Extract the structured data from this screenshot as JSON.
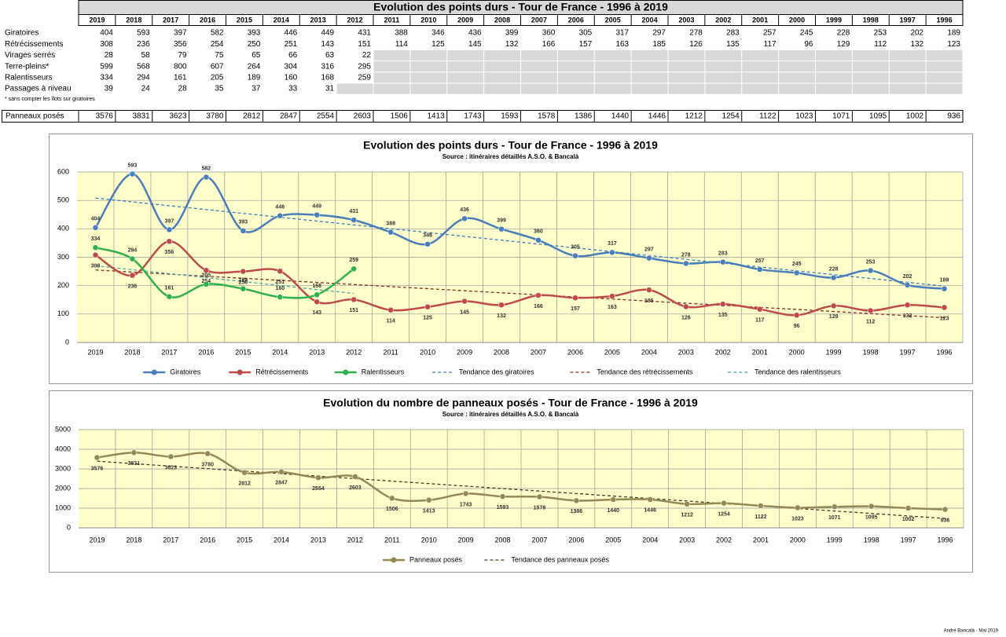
{
  "table": {
    "title": "Evolution des points durs - Tour de France - 1996 à 2019",
    "years": [
      "2019",
      "2018",
      "2017",
      "2016",
      "2015",
      "2014",
      "2013",
      "2012",
      "2011",
      "2010",
      "2009",
      "2008",
      "2007",
      "2006",
      "2005",
      "2004",
      "2003",
      "2002",
      "2001",
      "2000",
      "1999",
      "1998",
      "1997",
      "1996"
    ],
    "rows": [
      {
        "label": "Giratoires",
        "values": [
          404,
          593,
          397,
          582,
          393,
          446,
          449,
          431,
          388,
          346,
          436,
          399,
          360,
          305,
          317,
          297,
          278,
          283,
          257,
          245,
          228,
          253,
          202,
          189
        ]
      },
      {
        "label": "Rétrécissements",
        "values": [
          308,
          236,
          356,
          254,
          250,
          251,
          143,
          151,
          114,
          125,
          145,
          132,
          166,
          157,
          163,
          185,
          126,
          135,
          117,
          96,
          129,
          112,
          132,
          123
        ]
      },
      {
        "label": "Virages serrés",
        "values": [
          28,
          58,
          79,
          75,
          65,
          66,
          63,
          22,
          null,
          null,
          null,
          null,
          null,
          null,
          null,
          null,
          null,
          null,
          null,
          null,
          null,
          null,
          null,
          null
        ]
      },
      {
        "label": "Terre-pleins*",
        "values": [
          599,
          568,
          800,
          607,
          264,
          304,
          316,
          295,
          null,
          null,
          null,
          null,
          null,
          null,
          null,
          null,
          null,
          null,
          null,
          null,
          null,
          null,
          null,
          null
        ]
      },
      {
        "label": "Ralentisseurs",
        "values": [
          334,
          294,
          161,
          205,
          189,
          160,
          168,
          259,
          null,
          null,
          null,
          null,
          null,
          null,
          null,
          null,
          null,
          null,
          null,
          null,
          null,
          null,
          null,
          null
        ]
      },
      {
        "label": "Passages à niveau",
        "values": [
          39,
          24,
          28,
          35,
          37,
          33,
          31,
          null,
          null,
          null,
          null,
          null,
          null,
          null,
          null,
          null,
          null,
          null,
          null,
          null,
          null,
          null,
          null,
          null
        ]
      }
    ],
    "note": "* sans compter les îlots sur giratoires",
    "total": {
      "label": "Panneaux posés",
      "values": [
        3576,
        3831,
        3623,
        3780,
        2812,
        2847,
        2554,
        2603,
        1506,
        1413,
        1743,
        1593,
        1578,
        1386,
        1440,
        1446,
        1212,
        1254,
        1122,
        1023,
        1071,
        1095,
        1002,
        936
      ]
    }
  },
  "chart_data": [
    {
      "type": "line",
      "title": "Evolution des points durs - Tour de France - 1996 à 2019",
      "subtitle": "Source : itinéraires détaillés A.S.O. & Bancalà",
      "categories": [
        "2019",
        "2018",
        "2017",
        "2016",
        "2015",
        "2014",
        "2013",
        "2012",
        "2011",
        "2010",
        "2009",
        "2008",
        "2007",
        "2006",
        "2005",
        "2004",
        "2003",
        "2002",
        "2001",
        "2000",
        "1999",
        "1998",
        "1997",
        "1996"
      ],
      "ylim": [
        0,
        600
      ],
      "yticks": [
        0,
        100,
        200,
        300,
        400,
        500,
        600
      ],
      "grid": true,
      "legend": "bottom",
      "background": "#ffffcc",
      "series": [
        {
          "name": "Giratoires",
          "color": "#4a7ebb",
          "values": [
            404,
            593,
            397,
            582,
            393,
            446,
            449,
            431,
            388,
            346,
            436,
            399,
            360,
            305,
            317,
            297,
            278,
            283,
            257,
            245,
            228,
            253,
            202,
            189
          ],
          "trend": {
            "name": "Tendance des giratoires",
            "color": "#3d7dbf"
          }
        },
        {
          "name": "Rétrécissements",
          "color": "#be4b48",
          "values": [
            308,
            236,
            356,
            254,
            250,
            251,
            143,
            151,
            114,
            125,
            145,
            132,
            166,
            157,
            163,
            185,
            126,
            135,
            117,
            96,
            129,
            112,
            132,
            123
          ],
          "trend": {
            "name": "Tendance des rétrécissements",
            "color": "#8b2a28"
          }
        },
        {
          "name": "Ralentisseurs",
          "color": "#2eb04a",
          "values": [
            334,
            294,
            161,
            205,
            189,
            160,
            168,
            259,
            null,
            null,
            null,
            null,
            null,
            null,
            null,
            null,
            null,
            null,
            null,
            null,
            null,
            null,
            null,
            null
          ],
          "trend": {
            "name": "Tendance des ralentisseurs",
            "color": "#4aa8a0"
          }
        }
      ]
    },
    {
      "type": "line",
      "title": "Evolution du nombre de panneaux posés - Tour de France - 1996 à 2019",
      "subtitle": "Source : itinéraires détaillés A.S.O. & Bancalà",
      "categories": [
        "2019",
        "2018",
        "2017",
        "2016",
        "2015",
        "2014",
        "2013",
        "2012",
        "2011",
        "2010",
        "2009",
        "2008",
        "2007",
        "2006",
        "2005",
        "2004",
        "2003",
        "2002",
        "2001",
        "2000",
        "1999",
        "1998",
        "1997",
        "1996"
      ],
      "ylim": [
        0,
        5000
      ],
      "yticks": [
        0,
        1000,
        2000,
        3000,
        4000,
        5000
      ],
      "grid": true,
      "legend": "bottom",
      "background": "#ffffcc",
      "series": [
        {
          "name": "Panneaux posés",
          "color": "#938953",
          "values": [
            3576,
            3831,
            3623,
            3780,
            2812,
            2847,
            2554,
            2603,
            1506,
            1413,
            1743,
            1593,
            1578,
            1386,
            1440,
            1446,
            1212,
            1254,
            1122,
            1023,
            1071,
            1095,
            1002,
            936
          ],
          "trend": {
            "name": "Tendance des panneaux posés",
            "color": "#4a3c28"
          }
        }
      ]
    }
  ],
  "footer": "André Bancalà - Mai 2019"
}
